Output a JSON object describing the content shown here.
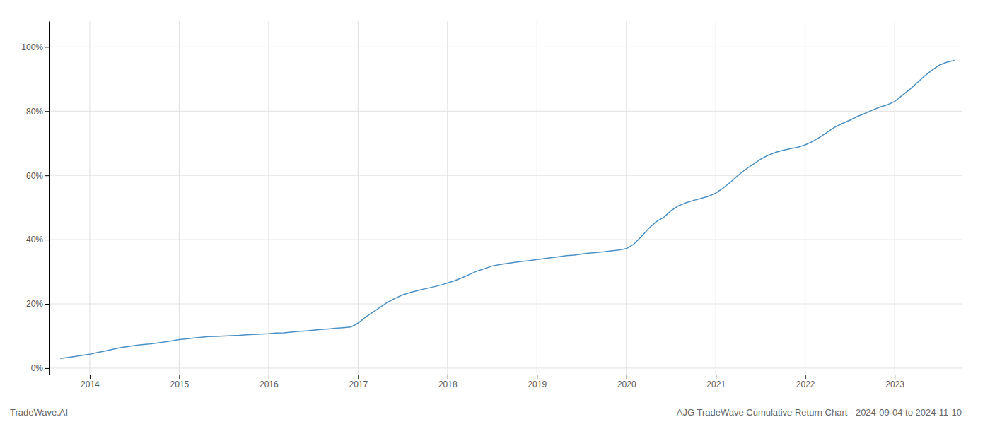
{
  "chart_data": {
    "type": "line",
    "title": "AJG TradeWave Cumulative Return Chart - 2024-09-04 to 2024-11-10",
    "annotations": [
      "TradeWave.AI"
    ],
    "color": "#4a90c4",
    "grid": true,
    "xlim": [
      2013.55,
      2023.75
    ],
    "xticks": [
      2014,
      2015,
      2016,
      2017,
      2018,
      2019,
      2020,
      2021,
      2022,
      2023
    ],
    "ylim": [
      -0.02,
      1.08
    ],
    "yticks": [
      {
        "value": 0.0,
        "label": "0%"
      },
      {
        "value": 0.2,
        "label": "20%"
      },
      {
        "value": 0.4,
        "label": "40%"
      },
      {
        "value": 0.6,
        "label": "60%"
      },
      {
        "value": 0.8,
        "label": "80%"
      },
      {
        "value": 1.0,
        "label": "100%"
      }
    ],
    "x": [
      2013.67,
      2013.75,
      2013.83,
      2013.92,
      2014.0,
      2014.08,
      2014.17,
      2014.25,
      2014.33,
      2014.42,
      2014.5,
      2014.58,
      2014.67,
      2014.75,
      2014.83,
      2014.92,
      2015.0,
      2015.08,
      2015.17,
      2015.25,
      2015.33,
      2015.42,
      2015.5,
      2015.58,
      2015.67,
      2015.75,
      2015.83,
      2015.92,
      2016.0,
      2016.08,
      2016.17,
      2016.25,
      2016.33,
      2016.42,
      2016.5,
      2016.58,
      2016.67,
      2016.75,
      2016.83,
      2016.92,
      2017.0,
      2017.08,
      2017.17,
      2017.25,
      2017.33,
      2017.42,
      2017.5,
      2017.58,
      2017.67,
      2017.75,
      2017.83,
      2017.92,
      2018.0,
      2018.08,
      2018.17,
      2018.25,
      2018.33,
      2018.42,
      2018.5,
      2018.58,
      2018.67,
      2018.75,
      2018.83,
      2018.92,
      2019.0,
      2019.08,
      2019.17,
      2019.25,
      2019.33,
      2019.42,
      2019.5,
      2019.58,
      2019.67,
      2019.75,
      2019.83,
      2019.92,
      2020.0,
      2020.08,
      2020.17,
      2020.25,
      2020.33,
      2020.42,
      2020.5,
      2020.58,
      2020.67,
      2020.75,
      2020.83,
      2020.92,
      2021.0,
      2021.08,
      2021.17,
      2021.25,
      2021.33,
      2021.42,
      2021.5,
      2021.58,
      2021.67,
      2021.75,
      2021.83,
      2021.92,
      2022.0,
      2022.08,
      2022.17,
      2022.25,
      2022.33,
      2022.42,
      2022.5,
      2022.58,
      2022.67,
      2022.75,
      2022.83,
      2022.92,
      2023.0,
      2023.08,
      2023.17,
      2023.25,
      2023.33,
      2023.42,
      2023.5,
      2023.58,
      2023.67
    ],
    "values": [
      0.03,
      0.033,
      0.036,
      0.04,
      0.043,
      0.048,
      0.053,
      0.058,
      0.063,
      0.067,
      0.07,
      0.073,
      0.075,
      0.078,
      0.081,
      0.085,
      0.089,
      0.091,
      0.094,
      0.096,
      0.098,
      0.099,
      0.1,
      0.101,
      0.102,
      0.104,
      0.105,
      0.106,
      0.107,
      0.109,
      0.11,
      0.112,
      0.114,
      0.116,
      0.118,
      0.12,
      0.122,
      0.124,
      0.126,
      0.128,
      0.14,
      0.158,
      0.175,
      0.19,
      0.205,
      0.218,
      0.228,
      0.235,
      0.242,
      0.247,
      0.252,
      0.258,
      0.265,
      0.272,
      0.282,
      0.292,
      0.302,
      0.31,
      0.318,
      0.322,
      0.326,
      0.329,
      0.332,
      0.335,
      0.338,
      0.341,
      0.344,
      0.347,
      0.35,
      0.352,
      0.355,
      0.358,
      0.36,
      0.362,
      0.365,
      0.368,
      0.372,
      0.385,
      0.41,
      0.435,
      0.455,
      0.47,
      0.49,
      0.505,
      0.515,
      0.522,
      0.528,
      0.535,
      0.545,
      0.56,
      0.58,
      0.6,
      0.618,
      0.635,
      0.65,
      0.662,
      0.672,
      0.678,
      0.683,
      0.688,
      0.695,
      0.705,
      0.72,
      0.735,
      0.75,
      0.762,
      0.772,
      0.783,
      0.793,
      0.803,
      0.812,
      0.82,
      0.83,
      0.848,
      0.868,
      0.888,
      0.908,
      0.928,
      0.943,
      0.952,
      0.958
    ]
  }
}
